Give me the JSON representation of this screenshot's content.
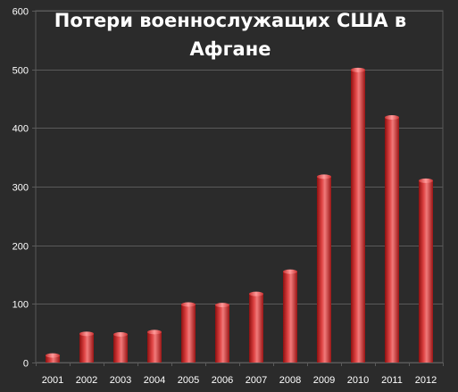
{
  "chart_data": {
    "type": "bar",
    "title_lines": [
      "Потери военнослужащих США в",
      "Афгане"
    ],
    "categories": [
      "2001",
      "2002",
      "2003",
      "2004",
      "2005",
      "2006",
      "2007",
      "2008",
      "2009",
      "2010",
      "2011",
      "2012"
    ],
    "series": [
      {
        "values": [
          12,
          49,
          48,
          52,
          99,
          98,
          117,
          155,
          317,
          499,
          418,
          310
        ]
      }
    ],
    "y_ticks": [
      "0",
      "100",
      "200",
      "300",
      "400",
      "500",
      "600"
    ],
    "ylim": [
      0,
      600
    ],
    "grid": true,
    "legend": "none",
    "colors": {
      "background": "#2b2b2b",
      "gridline": "#5a5a5a",
      "bar_dark": "#8e1010",
      "bar_mid": "#d83535",
      "bar_light": "#f07a7a",
      "text": "#ffffff"
    }
  }
}
